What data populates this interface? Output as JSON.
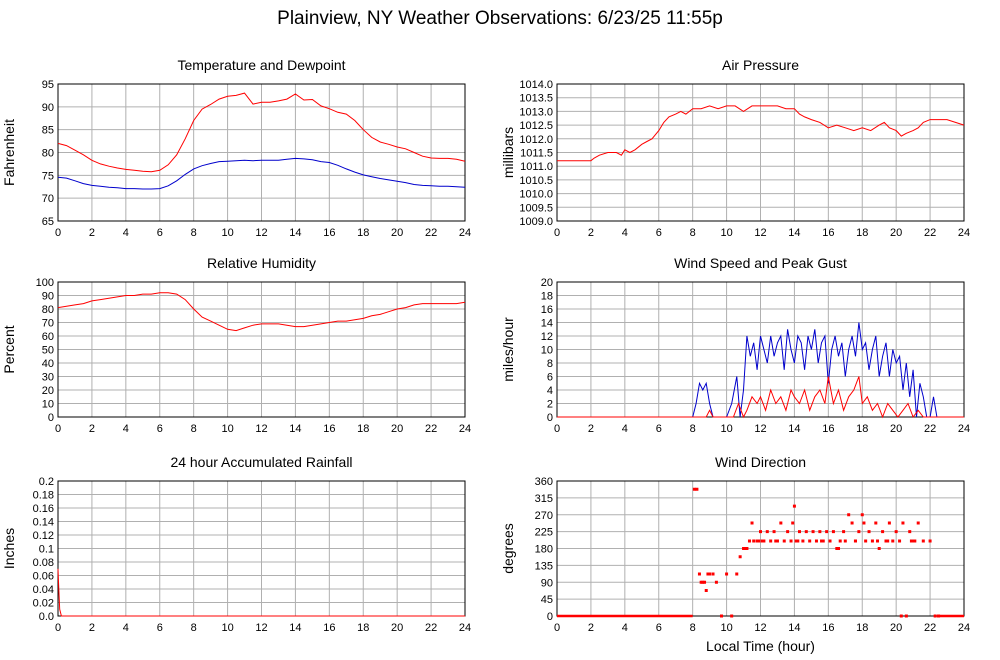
{
  "title": "Plainview, NY Weather Observations: 6/23/25 11:55p",
  "chart_data": [
    {
      "id": "temp",
      "type": "line",
      "title": "Temperature and Dewpoint",
      "ylabel": "Fahrenheit",
      "xlabel": "",
      "xlim": [
        0,
        24
      ],
      "ylim": [
        65,
        95
      ],
      "xticks": [
        0,
        2,
        4,
        6,
        8,
        10,
        12,
        14,
        16,
        18,
        20,
        22,
        24
      ],
      "yticks": [
        65,
        70,
        75,
        80,
        85,
        90,
        95
      ],
      "grid": true,
      "series": [
        {
          "color": "#ff0000",
          "x": [
            0,
            0.5,
            1,
            1.5,
            2,
            2.5,
            3,
            3.5,
            4,
            4.5,
            5,
            5.5,
            6,
            6.5,
            7,
            7.5,
            8,
            8.5,
            9,
            9.5,
            10,
            10.5,
            11,
            11.5,
            12,
            12.5,
            13,
            13.5,
            14,
            14.5,
            15,
            15.5,
            16,
            16.5,
            17,
            17.5,
            18,
            18.5,
            19,
            19.5,
            20,
            20.5,
            21,
            21.5,
            22,
            22.5,
            23,
            23.5,
            24
          ],
          "y": [
            82,
            81.5,
            80.5,
            79.5,
            78.3,
            77.5,
            77,
            76.6,
            76.3,
            76.1,
            75.9,
            75.8,
            76.1,
            77.3,
            79.5,
            83,
            87,
            89.5,
            90.5,
            91.7,
            92.3,
            92.5,
            93,
            90.6,
            91,
            91,
            91.3,
            91.7,
            92.8,
            91.5,
            91.6,
            90.2,
            89.6,
            88.8,
            88.4,
            87,
            85,
            83.3,
            82.3,
            81.8,
            81.2,
            80.8,
            80,
            79.2,
            78.8,
            78.7,
            78.7,
            78.5,
            78.1
          ]
        },
        {
          "color": "#0000cc",
          "x": [
            0,
            0.5,
            1,
            1.5,
            2,
            2.5,
            3,
            3.5,
            4,
            4.5,
            5,
            5.5,
            6,
            6.5,
            7,
            7.5,
            8,
            8.5,
            9,
            9.5,
            10,
            10.5,
            11,
            11.5,
            12,
            12.5,
            13,
            13.5,
            14,
            14.5,
            15,
            15.5,
            16,
            16.5,
            17,
            17.5,
            18,
            18.5,
            19,
            19.5,
            20,
            20.5,
            21,
            21.5,
            22,
            22.5,
            23,
            23.5,
            24
          ],
          "y": [
            74.6,
            74.4,
            73.8,
            73.2,
            72.8,
            72.6,
            72.4,
            72.3,
            72.1,
            72.1,
            72,
            72,
            72.1,
            72.7,
            73.8,
            75.2,
            76.4,
            77.1,
            77.6,
            78,
            78.1,
            78.2,
            78.3,
            78.2,
            78.3,
            78.3,
            78.3,
            78.5,
            78.7,
            78.6,
            78.4,
            78,
            77.8,
            77.2,
            76.4,
            75.7,
            75.1,
            74.7,
            74.3,
            74,
            73.7,
            73.4,
            73,
            72.8,
            72.7,
            72.6,
            72.6,
            72.5,
            72.4
          ]
        }
      ]
    },
    {
      "id": "pressure",
      "type": "line",
      "title": "Air Pressure",
      "ylabel": "millibars",
      "xlabel": "",
      "xlim": [
        0,
        24
      ],
      "ylim": [
        1009.0,
        1014.0
      ],
      "xticks": [
        0,
        2,
        4,
        6,
        8,
        10,
        12,
        14,
        16,
        18,
        20,
        22,
        24
      ],
      "yticks": [
        "1009.0",
        "1009.5",
        "1010.0",
        "1010.5",
        "1011.0",
        "1011.5",
        "1012.0",
        "1012.5",
        "1013.0",
        "1013.5",
        "1014.0"
      ],
      "grid": true,
      "series": [
        {
          "color": "#ff0000",
          "x": [
            0,
            1,
            2,
            2.2,
            2.5,
            3,
            3.5,
            3.8,
            4,
            4.3,
            4.6,
            5,
            5.3,
            5.6,
            6,
            6.3,
            6.6,
            7,
            7.3,
            7.6,
            8,
            8.5,
            9,
            9.5,
            10,
            10.5,
            11,
            11.5,
            12,
            12.5,
            13,
            13.5,
            14,
            14.3,
            14.6,
            15,
            15.5,
            16,
            16.5,
            17,
            17.5,
            18,
            18.5,
            19,
            19.3,
            19.6,
            20,
            20.3,
            20.6,
            21,
            21.3,
            21.6,
            22,
            22.5,
            23,
            23.5,
            24
          ],
          "y": [
            1011.2,
            1011.2,
            1011.2,
            1011.3,
            1011.4,
            1011.5,
            1011.5,
            1011.4,
            1011.6,
            1011.5,
            1011.6,
            1011.8,
            1011.9,
            1012.0,
            1012.3,
            1012.6,
            1012.8,
            1012.9,
            1013.0,
            1012.9,
            1013.1,
            1013.1,
            1013.2,
            1013.1,
            1013.2,
            1013.2,
            1013.0,
            1013.2,
            1013.2,
            1013.2,
            1013.2,
            1013.1,
            1013.1,
            1012.9,
            1012.8,
            1012.7,
            1012.6,
            1012.4,
            1012.5,
            1012.4,
            1012.3,
            1012.4,
            1012.3,
            1012.5,
            1012.6,
            1012.4,
            1012.3,
            1012.1,
            1012.2,
            1012.3,
            1012.4,
            1012.6,
            1012.7,
            1012.7,
            1012.7,
            1012.6,
            1012.5
          ]
        }
      ]
    },
    {
      "id": "humidity",
      "type": "line",
      "title": "Relative Humidity",
      "ylabel": "Percent",
      "xlabel": "",
      "xlim": [
        0,
        24
      ],
      "ylim": [
        0,
        100
      ],
      "xticks": [
        0,
        2,
        4,
        6,
        8,
        10,
        12,
        14,
        16,
        18,
        20,
        22,
        24
      ],
      "yticks": [
        0,
        10,
        20,
        30,
        40,
        50,
        60,
        70,
        80,
        90,
        100
      ],
      "grid": true,
      "series": [
        {
          "color": "#ff0000",
          "x": [
            0,
            0.5,
            1,
            1.5,
            2,
            2.5,
            3,
            3.5,
            4,
            4.5,
            5,
            5.5,
            6,
            6.5,
            7,
            7.5,
            8,
            8.5,
            9,
            9.5,
            10,
            10.5,
            11,
            11.5,
            12,
            12.5,
            13,
            13.5,
            14,
            14.5,
            15,
            15.5,
            16,
            16.5,
            17,
            17.5,
            18,
            18.5,
            19,
            19.5,
            20,
            20.5,
            21,
            21.5,
            22,
            22.5,
            23,
            23.5,
            24
          ],
          "y": [
            81,
            82,
            83,
            84,
            86,
            87,
            88,
            89,
            90,
            90,
            91,
            91,
            92,
            92,
            91,
            87,
            80,
            74,
            71,
            68,
            65,
            64,
            66,
            68,
            69,
            69,
            69,
            68,
            67,
            67,
            68,
            69,
            70,
            71,
            71,
            72,
            73,
            75,
            76,
            78,
            80,
            81,
            83,
            84,
            84,
            84,
            84,
            84,
            85
          ]
        }
      ]
    },
    {
      "id": "wind",
      "type": "line",
      "title": "Wind Speed and Peak Gust",
      "ylabel": "miles/hour",
      "xlabel": "",
      "xlim": [
        0,
        24
      ],
      "ylim": [
        0,
        20
      ],
      "xticks": [
        0,
        2,
        4,
        6,
        8,
        10,
        12,
        14,
        16,
        18,
        20,
        22,
        24
      ],
      "yticks": [
        0,
        2,
        4,
        6,
        8,
        10,
        12,
        14,
        16,
        18,
        20
      ],
      "grid": true,
      "series": [
        {
          "color": "#0000cc",
          "x": [
            0,
            8,
            8.2,
            8.4,
            8.6,
            8.8,
            9,
            9.2,
            9.5,
            9.8,
            10,
            10.3,
            10.6,
            10.8,
            11,
            11.2,
            11.4,
            11.6,
            11.8,
            12,
            12.2,
            12.4,
            12.6,
            12.8,
            13,
            13.2,
            13.4,
            13.6,
            13.8,
            14,
            14.2,
            14.4,
            14.6,
            14.8,
            15,
            15.2,
            15.4,
            15.6,
            15.8,
            16,
            16.2,
            16.4,
            16.6,
            16.8,
            17,
            17.2,
            17.4,
            17.6,
            17.8,
            18,
            18.2,
            18.4,
            18.6,
            18.8,
            19,
            19.2,
            19.4,
            19.6,
            19.8,
            20,
            20.2,
            20.4,
            20.6,
            20.8,
            21,
            21.2,
            21.4,
            21.6,
            21.8,
            22,
            22.2,
            22.4,
            22.6,
            24
          ],
          "y": [
            0,
            0,
            2,
            5,
            4,
            5,
            2,
            0,
            0,
            0,
            0,
            2,
            6,
            0,
            4,
            12,
            9,
            11,
            7,
            12,
            10,
            8,
            12,
            9,
            11,
            12,
            7,
            13,
            10,
            8,
            12,
            11,
            7,
            12,
            10,
            13,
            8,
            11,
            12,
            5,
            10,
            12,
            9,
            11,
            6,
            10,
            12,
            9,
            14,
            10,
            11,
            7,
            10,
            12,
            6,
            9,
            11,
            6,
            10,
            8,
            9,
            4,
            8,
            3,
            7,
            0,
            5,
            3,
            0,
            0,
            3,
            0,
            0,
            0
          ]
        },
        {
          "color": "#ff0000",
          "x": [
            0,
            8.8,
            9,
            9.2,
            9.6,
            10,
            10.4,
            10.7,
            11,
            11.2,
            11.5,
            11.8,
            12,
            12.3,
            12.6,
            12.9,
            13.2,
            13.5,
            13.8,
            14,
            14.3,
            14.6,
            14.9,
            15.2,
            15.5,
            15.8,
            16,
            16.3,
            16.6,
            16.9,
            17.2,
            17.5,
            17.8,
            18,
            18.3,
            18.6,
            18.9,
            19.2,
            19.5,
            19.8,
            20.1,
            20.4,
            20.7,
            21,
            21.3,
            21.6,
            24
          ],
          "y": [
            0,
            0,
            1,
            0,
            0,
            0,
            0,
            2,
            0,
            1,
            3,
            2,
            3,
            1,
            4,
            2,
            3,
            1,
            4,
            3,
            2,
            4,
            1,
            3,
            4,
            2,
            6,
            2,
            4,
            1,
            3,
            4,
            6,
            2,
            3,
            1,
            2,
            0,
            2,
            1,
            0,
            1,
            2,
            0,
            1,
            0,
            0
          ]
        }
      ]
    },
    {
      "id": "rain",
      "type": "line",
      "title": "24 hour Accumulated Rainfall",
      "ylabel": "Inches",
      "xlabel": "",
      "xlim": [
        0,
        24
      ],
      "ylim": [
        0,
        0.2
      ],
      "xticks": [
        0,
        2,
        4,
        6,
        8,
        10,
        12,
        14,
        16,
        18,
        20,
        22,
        24
      ],
      "yticks": [
        "0.0",
        "0.02",
        "0.04",
        "0.06",
        "0.08",
        "0.1",
        "0.12",
        "0.14",
        "0.16",
        "0.18",
        "0.2"
      ],
      "grid": true,
      "series": [
        {
          "color": "#ff0000",
          "x": [
            0,
            0.05,
            0.1,
            0.2,
            24
          ],
          "y": [
            0.07,
            0.04,
            0.01,
            0,
            0
          ]
        }
      ]
    },
    {
      "id": "direction",
      "type": "scatter",
      "title": "Wind Direction",
      "ylabel": "degrees",
      "xlabel": "Local Time (hour)",
      "xlim": [
        0,
        24
      ],
      "ylim": [
        0,
        360
      ],
      "xticks": [
        0,
        2,
        4,
        6,
        8,
        10,
        12,
        14,
        16,
        18,
        20,
        22,
        24
      ],
      "yticks": [
        0,
        45,
        90,
        135,
        180,
        225,
        270,
        315,
        360
      ],
      "grid": true,
      "series": [
        {
          "color": "#ff0000",
          "x": [
            8.1,
            8.25,
            8.4,
            8.5,
            8.6,
            8.7,
            8.8,
            8.9,
            9.0,
            9.2,
            9.4,
            9.7,
            10.0,
            10.3,
            10.6,
            10.8,
            11.0,
            11.1,
            11.2,
            11.35,
            11.5,
            11.6,
            11.8,
            12.0,
            12.1,
            12.2,
            12.4,
            12.6,
            12.8,
            13.0,
            13.2,
            13.4,
            13.6,
            13.8,
            14.0,
            14.1,
            14.3,
            14.5,
            14.7,
            14.9,
            15.1,
            15.3,
            15.5,
            15.7,
            15.9,
            16.1,
            16.3,
            16.5,
            16.7,
            16.9,
            17.0,
            17.2,
            17.4,
            17.6,
            17.8,
            18.0,
            18.2,
            18.4,
            18.6,
            18.8,
            19.0,
            19.2,
            19.4,
            19.6,
            19.8,
            20.0,
            20.2,
            20.4,
            20.6,
            20.8,
            21.0,
            21.3,
            21.6,
            22.0,
            22.3,
            11.9,
            12.9,
            13.9,
            14.2,
            15.6,
            16.6,
            17.6,
            18.1,
            18.9,
            19.5,
            20.3,
            20.9,
            21.1,
            22.5
          ],
          "y": [
            338,
            338,
            112,
            90,
            90,
            90,
            68,
            112,
            112,
            112,
            90,
            0,
            112,
            0,
            112,
            158,
            180,
            180,
            180,
            200,
            248,
            200,
            200,
            225,
            200,
            200,
            225,
            200,
            225,
            200,
            248,
            200,
            225,
            200,
            293,
            200,
            225,
            200,
            225,
            200,
            225,
            200,
            225,
            200,
            225,
            200,
            225,
            180,
            200,
            225,
            200,
            270,
            248,
            200,
            225,
            270,
            200,
            225,
            200,
            248,
            180,
            225,
            200,
            248,
            200,
            225,
            200,
            248,
            0,
            225,
            200,
            248,
            200,
            200,
            0,
            200,
            200,
            248,
            200,
            200,
            180,
            200,
            248,
            200,
            200,
            0,
            200,
            200,
            0
          ]
        },
        {
          "color": "#ff0000",
          "baseline": true,
          "x": [
            0,
            8
          ],
          "y": [
            0,
            0
          ]
        },
        {
          "color": "#ff0000",
          "baseline": true,
          "x": [
            22.4,
            24
          ],
          "y": [
            0,
            0
          ]
        }
      ]
    }
  ]
}
